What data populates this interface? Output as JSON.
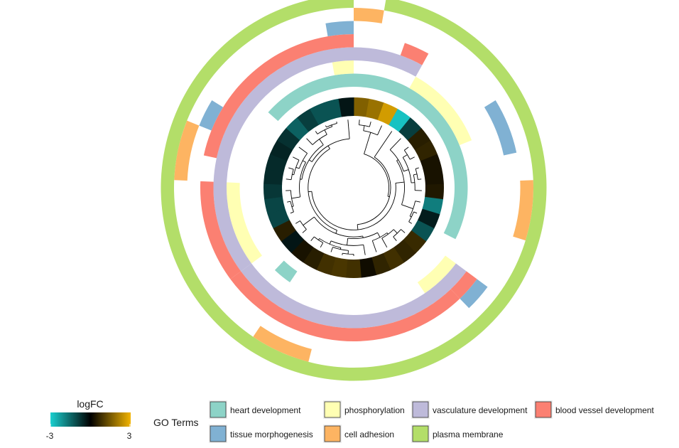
{
  "chart_data": {
    "type": "circular-heatmap-dendrogram",
    "colorbar": {
      "title": "logFC",
      "min_label": "-3",
      "max_label": "3",
      "range": [
        -3,
        3
      ],
      "low_color": "#1ad0d0",
      "mid_color": "#000000",
      "high_color": "#f2b400"
    },
    "go_legend_title": "GO Terms",
    "go_terms": [
      {
        "name": "heart development",
        "color": "#8dd3c7"
      },
      {
        "name": "phosphorylation",
        "color": "#ffffb3"
      },
      {
        "name": "vasculature development",
        "color": "#bebada"
      },
      {
        "name": "blood vessel development",
        "color": "#fb8072"
      },
      {
        "name": "tissue morphogenesis",
        "color": "#80b1d3"
      },
      {
        "name": "cell adhesion",
        "color": "#fdb462"
      },
      {
        "name": "plasma membrane",
        "color": "#b3de69"
      }
    ],
    "logfc": [
      1.6,
      1.9,
      2.6,
      -2.8,
      -0.9,
      0.5,
      0.6,
      0.3,
      0.3,
      0.4,
      -1.8,
      -0.4,
      -1.2,
      0.7,
      0.6,
      0.8,
      0.6,
      0.2,
      0.8,
      0.9,
      0.8,
      0.5,
      0.3,
      -0.3,
      0.5,
      -1.0,
      -1.0,
      -0.8,
      -0.6,
      -0.6,
      -0.5,
      -0.7,
      -1.4,
      -0.9,
      -1.2,
      -1.2,
      -0.3
    ],
    "term_segments": [
      {
        "ring": "heart development",
        "start": 0,
        "end": 12
      },
      {
        "ring": "heart development",
        "start": 32,
        "end": 37
      },
      {
        "ring": "heart development",
        "start": 22,
        "end": 23
      },
      {
        "ring": "phosphorylation",
        "start": 3,
        "end": 7
      },
      {
        "ring": "phosphorylation",
        "start": 13,
        "end": 15
      },
      {
        "ring": "phosphorylation",
        "start": 24,
        "end": 28
      },
      {
        "ring": "phosphorylation",
        "start": 36,
        "end": 37
      },
      {
        "ring": "vasculature development",
        "start": 0,
        "end": 3
      },
      {
        "ring": "vasculature development",
        "start": 13,
        "end": 24
      },
      {
        "ring": "vasculature development",
        "start": 24,
        "end": 37
      },
      {
        "ring": "blood vessel development",
        "start": 2,
        "end": 3
      },
      {
        "ring": "blood vessel development",
        "start": 13,
        "end": 14
      },
      {
        "ring": "blood vessel development",
        "start": 14,
        "end": 24
      },
      {
        "ring": "blood vessel development",
        "start": 24,
        "end": 28
      },
      {
        "ring": "blood vessel development",
        "start": 29,
        "end": 37
      },
      {
        "ring": "tissue morphogenesis",
        "start": 6,
        "end": 8
      },
      {
        "ring": "tissue morphogenesis",
        "start": 13,
        "end": 14
      },
      {
        "ring": "tissue morphogenesis",
        "start": 30,
        "end": 31
      },
      {
        "ring": "tissue morphogenesis",
        "start": 36,
        "end": 37
      },
      {
        "ring": "cell adhesion",
        "start": 9,
        "end": 11
      },
      {
        "ring": "cell adhesion",
        "start": 20,
        "end": 22
      },
      {
        "ring": "cell adhesion",
        "start": 28,
        "end": 30
      },
      {
        "ring": "cell adhesion",
        "start": 0,
        "end": 1
      },
      {
        "ring": "plasma membrane",
        "start": 1,
        "end": 37
      }
    ]
  }
}
